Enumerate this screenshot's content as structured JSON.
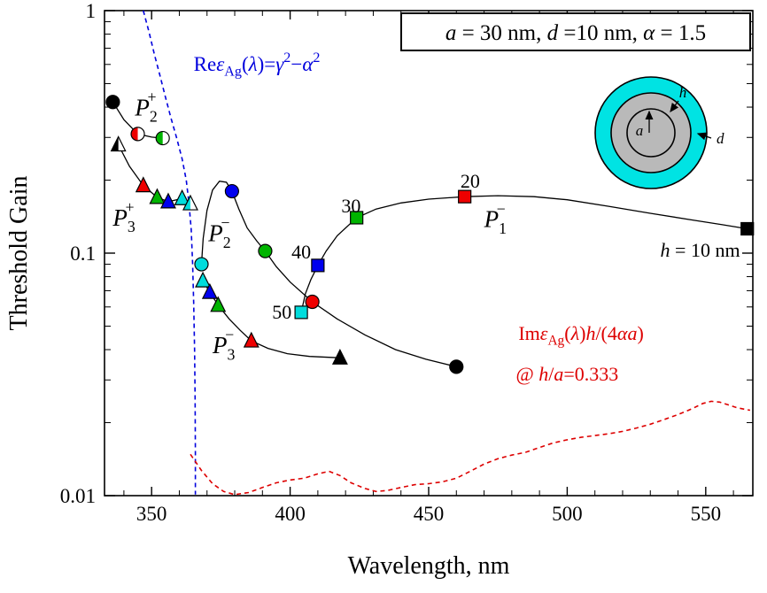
{
  "chart_data": {
    "type": "line",
    "title": "",
    "xlabel": "Wavelength, nm",
    "ylabel": "Threshold Gain",
    "x_axis": {
      "min": 333,
      "max": 567,
      "major_ticks": [
        350,
        400,
        450,
        500,
        550
      ],
      "minor_step": 10
    },
    "y_axis": {
      "scale": "log",
      "min": 0.01,
      "max": 1,
      "major_ticks": [
        {
          "v": 1,
          "label": "1"
        },
        {
          "v": 0.1,
          "label": "0.1"
        },
        {
          "v": 0.01,
          "label": "0.01"
        }
      ]
    },
    "colors": {
      "black": "#000000",
      "red": "#ee0000",
      "green": "#00b400",
      "blue": "#0000ee",
      "cyan": "#00dcdc"
    },
    "h_color_map": {
      "10": "black",
      "20": "red",
      "30": "green",
      "40": "blue",
      "50": "cyan"
    },
    "param_box": {
      "segments": [
        {
          "t": "a",
          "i": true
        },
        {
          "t": " = 30 nm, "
        },
        {
          "t": "d",
          "i": true
        },
        {
          "t": " =10 nm, "
        },
        {
          "t": "α",
          "i": true
        },
        {
          "t": " = 1.5"
        }
      ]
    },
    "series": [
      {
        "id": "re-eps-curve",
        "name": "Re epsilon_Ag condition",
        "color": "#0000dd",
        "width": 1.6,
        "dash": "5,4",
        "marker": "none",
        "path": [
          [
            347,
            1.0
          ],
          [
            349,
            0.82
          ],
          [
            351,
            0.66
          ],
          [
            353,
            0.54
          ],
          [
            355,
            0.44
          ],
          [
            357,
            0.36
          ],
          [
            359,
            0.3
          ],
          [
            361,
            0.245
          ],
          [
            362.5,
            0.2
          ],
          [
            363.5,
            0.16
          ],
          [
            364.3,
            0.125
          ],
          [
            364.8,
            0.09
          ],
          [
            365.2,
            0.062
          ],
          [
            365.5,
            0.04
          ],
          [
            365.7,
            0.025
          ],
          [
            365.8,
            0.015
          ],
          [
            365.8,
            0.0101
          ]
        ]
      },
      {
        "id": "im-eps-curve",
        "name": "Im epsilon_Ag losses",
        "color": "#dd0000",
        "width": 1.6,
        "dash": "5,4",
        "marker": "none",
        "path": [
          [
            364,
            0.0148
          ],
          [
            368,
            0.0127
          ],
          [
            372,
            0.0112
          ],
          [
            376,
            0.0104
          ],
          [
            380,
            0.0101
          ],
          [
            385,
            0.0103
          ],
          [
            390,
            0.0108
          ],
          [
            395,
            0.0113
          ],
          [
            400,
            0.0116
          ],
          [
            405,
            0.0118
          ],
          [
            410,
            0.0123
          ],
          [
            414,
            0.0126
          ],
          [
            418,
            0.0121
          ],
          [
            422,
            0.0113
          ],
          [
            427,
            0.0107
          ],
          [
            431,
            0.0104
          ],
          [
            435,
            0.0105
          ],
          [
            440,
            0.0108
          ],
          [
            445,
            0.0111
          ],
          [
            450,
            0.0112
          ],
          [
            455,
            0.0114
          ],
          [
            460,
            0.0118
          ],
          [
            465,
            0.0126
          ],
          [
            470,
            0.0135
          ],
          [
            475,
            0.0142
          ],
          [
            480,
            0.0147
          ],
          [
            485,
            0.0151
          ],
          [
            490,
            0.0158
          ],
          [
            495,
            0.0165
          ],
          [
            500,
            0.017
          ],
          [
            505,
            0.0174
          ],
          [
            510,
            0.0177
          ],
          [
            515,
            0.018
          ],
          [
            520,
            0.0184
          ],
          [
            525,
            0.019
          ],
          [
            530,
            0.0197
          ],
          [
            535,
            0.0206
          ],
          [
            540,
            0.0216
          ],
          [
            545,
            0.0228
          ],
          [
            549,
            0.024
          ],
          [
            552,
            0.0245
          ],
          [
            555,
            0.0243
          ],
          [
            558,
            0.0237
          ],
          [
            561,
            0.0231
          ],
          [
            564,
            0.0227
          ],
          [
            566,
            0.0225
          ]
        ]
      },
      {
        "id": "P2-plus",
        "name": "P2+ mode",
        "color": "#000000",
        "width": 1.3,
        "marker": "circle",
        "points": [
          {
            "x": 336,
            "y": 0.42,
            "c": "black",
            "f": "full",
            "h": 10
          },
          {
            "x": 345,
            "y": 0.31,
            "c": "red",
            "f": "half",
            "h": 20
          },
          {
            "x": 354,
            "y": 0.298,
            "c": "green",
            "f": "half",
            "h": 30
          }
        ],
        "path": [
          [
            336,
            0.42
          ],
          [
            340,
            0.355
          ],
          [
            345,
            0.31
          ],
          [
            350,
            0.301
          ],
          [
            354,
            0.298
          ]
        ]
      },
      {
        "id": "P3-plus",
        "name": "P3+ mode",
        "color": "#000000",
        "width": 1.3,
        "marker": "triangle",
        "points": [
          {
            "x": 338,
            "y": 0.28,
            "c": "black",
            "f": "half",
            "h": 10
          },
          {
            "x": 347,
            "y": 0.19,
            "c": "red",
            "f": "full",
            "h": 20
          },
          {
            "x": 352,
            "y": 0.17,
            "c": "green",
            "f": "full",
            "h": 30
          },
          {
            "x": 356,
            "y": 0.163,
            "c": "blue",
            "f": "full",
            "h": 40
          },
          {
            "x": 361,
            "y": 0.168,
            "c": "cyan",
            "f": "full",
            "h": 50
          },
          {
            "x": 364,
            "y": 0.16,
            "c": "cyan",
            "f": "half",
            "h": 50
          }
        ],
        "path": [
          [
            338,
            0.28
          ],
          [
            342,
            0.228
          ],
          [
            347,
            0.19
          ],
          [
            352,
            0.17
          ],
          [
            356,
            0.163
          ],
          [
            361,
            0.168
          ],
          [
            364,
            0.16
          ]
        ]
      },
      {
        "id": "P2-minus",
        "name": "P2- mode",
        "color": "#000000",
        "width": 1.3,
        "marker": "circle",
        "points": [
          {
            "x": 368,
            "y": 0.09,
            "c": "cyan",
            "f": "full",
            "h": 50
          },
          {
            "x": 379,
            "y": 0.18,
            "c": "blue",
            "f": "full",
            "h": 40
          },
          {
            "x": 391,
            "y": 0.102,
            "c": "green",
            "f": "full",
            "h": 30
          },
          {
            "x": 408,
            "y": 0.063,
            "c": "red",
            "f": "full",
            "h": 20
          },
          {
            "x": 460,
            "y": 0.034,
            "c": "black",
            "f": "full",
            "h": 10
          }
        ],
        "path": [
          [
            368,
            0.09
          ],
          [
            368.6,
            0.115
          ],
          [
            370,
            0.15
          ],
          [
            372,
            0.182
          ],
          [
            374.5,
            0.198
          ],
          [
            377,
            0.196
          ],
          [
            379,
            0.18
          ],
          [
            381.5,
            0.152
          ],
          [
            384.5,
            0.127
          ],
          [
            388,
            0.112
          ],
          [
            391,
            0.102
          ],
          [
            395,
            0.088
          ],
          [
            400,
            0.076
          ],
          [
            408,
            0.063
          ],
          [
            417,
            0.0535
          ],
          [
            427,
            0.046
          ],
          [
            438,
            0.04
          ],
          [
            449,
            0.0365
          ],
          [
            460,
            0.034
          ]
        ]
      },
      {
        "id": "P3-minus",
        "name": "P3- mode",
        "color": "#000000",
        "width": 1.3,
        "marker": "triangle",
        "points": [
          {
            "x": 368.5,
            "y": 0.077,
            "c": "cyan",
            "f": "full",
            "h": 50
          },
          {
            "x": 371,
            "y": 0.069,
            "c": "blue",
            "f": "full",
            "h": 40
          },
          {
            "x": 374,
            "y": 0.061,
            "c": "green",
            "f": "full",
            "h": 30
          },
          {
            "x": 386,
            "y": 0.0435,
            "c": "red",
            "f": "full",
            "h": 20
          },
          {
            "x": 418,
            "y": 0.037,
            "c": "black",
            "f": "full",
            "h": 10
          }
        ],
        "path": [
          [
            368.5,
            0.077
          ],
          [
            371,
            0.069
          ],
          [
            374,
            0.061
          ],
          [
            378,
            0.0535
          ],
          [
            382,
            0.048
          ],
          [
            386,
            0.0435
          ],
          [
            392,
            0.0405
          ],
          [
            399,
            0.0385
          ],
          [
            407,
            0.0375
          ],
          [
            418,
            0.037
          ]
        ]
      },
      {
        "id": "P1-minus",
        "name": "P1- mode",
        "color": "#000000",
        "width": 1.3,
        "marker": "square",
        "points": [
          {
            "x": 404,
            "y": 0.057,
            "c": "cyan",
            "f": "full",
            "h": 50
          },
          {
            "x": 410,
            "y": 0.089,
            "c": "blue",
            "f": "full",
            "h": 40
          },
          {
            "x": 424,
            "y": 0.14,
            "c": "green",
            "f": "full",
            "h": 30
          },
          {
            "x": 463,
            "y": 0.171,
            "c": "red",
            "f": "full",
            "h": 20
          },
          {
            "x": 565,
            "y": 0.126,
            "c": "black",
            "f": "full",
            "h": 10
          }
        ],
        "path": [
          [
            404,
            0.057
          ],
          [
            405.5,
            0.068
          ],
          [
            407.5,
            0.078
          ],
          [
            410,
            0.089
          ],
          [
            413,
            0.102
          ],
          [
            417,
            0.118
          ],
          [
            424,
            0.14
          ],
          [
            431,
            0.152
          ],
          [
            440,
            0.161
          ],
          [
            450,
            0.167
          ],
          [
            463,
            0.171
          ],
          [
            475,
            0.1725
          ],
          [
            488,
            0.171
          ],
          [
            500,
            0.166
          ],
          [
            515,
            0.156
          ],
          [
            530,
            0.146
          ],
          [
            545,
            0.137
          ],
          [
            556,
            0.131
          ],
          [
            565,
            0.126
          ]
        ]
      }
    ],
    "annotations": [
      {
        "id": "re-eps-label",
        "x": 388,
        "y": 0.565,
        "anchor": "middle",
        "color": "#0000dd",
        "size": 23,
        "segments": [
          {
            "t": "Re"
          },
          {
            "t": "ε",
            "i": true
          },
          {
            "t": "Ag",
            "sub": true
          },
          {
            "t": "("
          },
          {
            "t": "λ",
            "i": true
          },
          {
            "t": ")="
          },
          {
            "t": "γ",
            "i": true
          },
          {
            "t": "2",
            "sup": true
          },
          {
            "t": "−"
          },
          {
            "t": "α",
            "i": true
          },
          {
            "t": "2",
            "sup": true
          }
        ]
      },
      {
        "id": "im-eps-label-1",
        "x": 505,
        "y": 0.0438,
        "anchor": "middle",
        "color": "#dd0000",
        "size": 22,
        "segments": [
          {
            "t": "Im"
          },
          {
            "t": "ε",
            "i": true
          },
          {
            "t": "Ag",
            "sub": true
          },
          {
            "t": "("
          },
          {
            "t": "λ",
            "i": true
          },
          {
            "t": ")"
          },
          {
            "t": "h",
            "i": true
          },
          {
            "t": "/(4"
          },
          {
            "t": "α",
            "i": true
          },
          {
            "t": "a",
            "i": true
          },
          {
            "t": ")"
          }
        ]
      },
      {
        "id": "im-eps-label-2",
        "x": 500,
        "y": 0.0298,
        "anchor": "middle",
        "color": "#dd0000",
        "size": 22,
        "segments": [
          {
            "t": "@ "
          },
          {
            "t": "h",
            "i": true
          },
          {
            "t": "/"
          },
          {
            "t": "a",
            "i": true
          },
          {
            "t": "=0.333"
          }
        ]
      },
      {
        "id": "mode-label-P2-plus",
        "x": 344,
        "y": 0.37,
        "anchor": "start",
        "color": "#000000",
        "size": 27,
        "stack": {
          "base": "P",
          "sub": "2",
          "sup": "+"
        }
      },
      {
        "id": "mode-label-P3-plus",
        "x": 336,
        "y": 0.13,
        "anchor": "start",
        "color": "#000000",
        "size": 27,
        "stack": {
          "base": "P",
          "sub": "3",
          "sup": "+"
        }
      },
      {
        "id": "mode-label-P2-minus",
        "x": 370.5,
        "y": 0.112,
        "anchor": "start",
        "color": "#000000",
        "size": 27,
        "stack": {
          "base": "P",
          "sub": "2",
          "sup": "−"
        }
      },
      {
        "id": "mode-label-P3-minus",
        "x": 372,
        "y": 0.0387,
        "anchor": "start",
        "color": "#000000",
        "size": 27,
        "stack": {
          "base": "P",
          "sub": "3",
          "sup": "−"
        }
      },
      {
        "id": "mode-label-P1-minus",
        "x": 470,
        "y": 0.128,
        "anchor": "start",
        "color": "#000000",
        "size": 27,
        "stack": {
          "base": "P",
          "sub": "1",
          "sup": "−"
        }
      },
      {
        "id": "h-label-20",
        "x": 465,
        "y": 0.186,
        "anchor": "middle",
        "color": "#000000",
        "size": 22,
        "segments": [
          {
            "t": "20"
          }
        ]
      },
      {
        "id": "h-label-30",
        "x": 422,
        "y": 0.147,
        "anchor": "middle",
        "color": "#000000",
        "size": 22,
        "segments": [
          {
            "t": "30"
          }
        ]
      },
      {
        "id": "h-label-40",
        "x": 404,
        "y": 0.095,
        "anchor": "middle",
        "color": "#000000",
        "size": 22,
        "segments": [
          {
            "t": "40"
          }
        ]
      },
      {
        "id": "h-label-50",
        "x": 397,
        "y": 0.0536,
        "anchor": "middle",
        "color": "#000000",
        "size": 22,
        "segments": [
          {
            "t": "50"
          }
        ]
      },
      {
        "id": "h-label-10",
        "x": 548,
        "y": 0.0967,
        "anchor": "middle",
        "color": "#000000",
        "size": 22,
        "segments": [
          {
            "t": "h",
            "i": true
          },
          {
            "t": " = 10 nm"
          }
        ]
      }
    ],
    "inset": {
      "outer_color": "#00e3e3",
      "shell_color": "#b9b9b9",
      "core_color": "#b9b9b9",
      "labels": {
        "core_radius": "a",
        "shell_thickness": "h",
        "outer_thickness": "d"
      }
    }
  }
}
